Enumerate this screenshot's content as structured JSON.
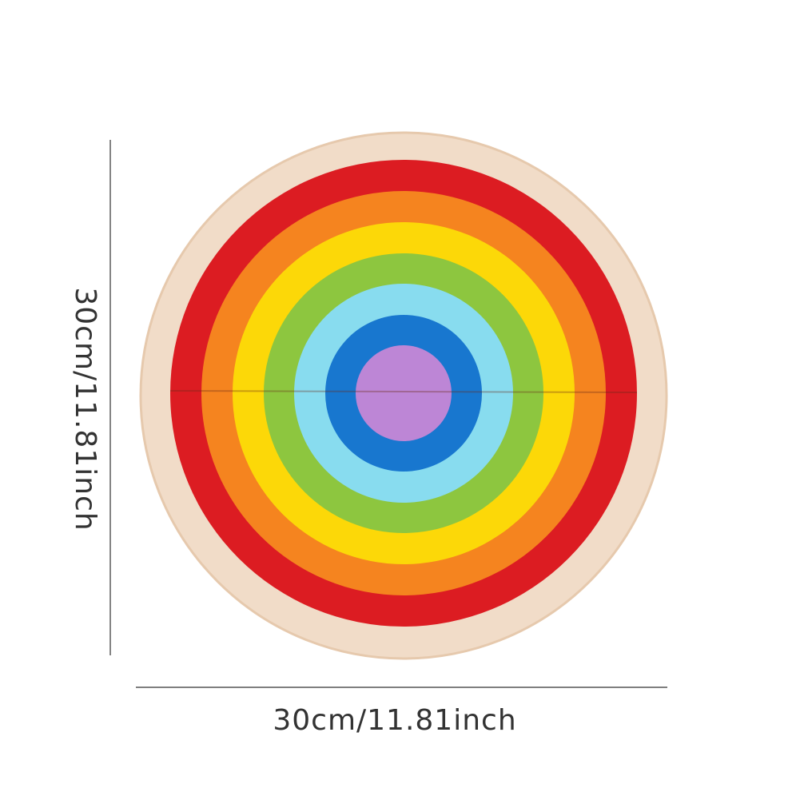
{
  "dimensions": {
    "height_label": "30cm/11.81inch",
    "width_label": "30cm/11.81inch"
  }
}
